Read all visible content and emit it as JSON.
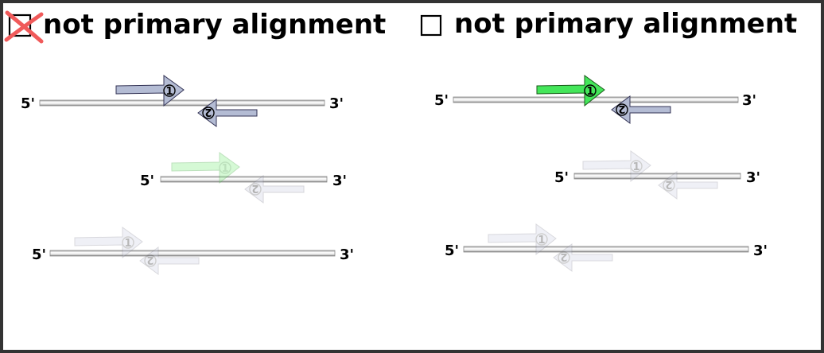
{
  "left_panel": {
    "label": "not primary alignment",
    "checkbox": "checked-crossed",
    "cross_color": "#f05a5a"
  },
  "right_panel": {
    "label": "not primary alignment",
    "checkbox": "unchecked"
  },
  "strand": {
    "five_prime": "5'",
    "three_prime": "3'"
  },
  "reads": {
    "forward_number": "1",
    "reverse_number": "2"
  },
  "colors": {
    "frame": "#333333",
    "read_default": "#b4bcd4",
    "read_highlight": "#44e65a",
    "read_highlight_faded": "#dcfadc",
    "read_faded": "#e8e8ee"
  }
}
